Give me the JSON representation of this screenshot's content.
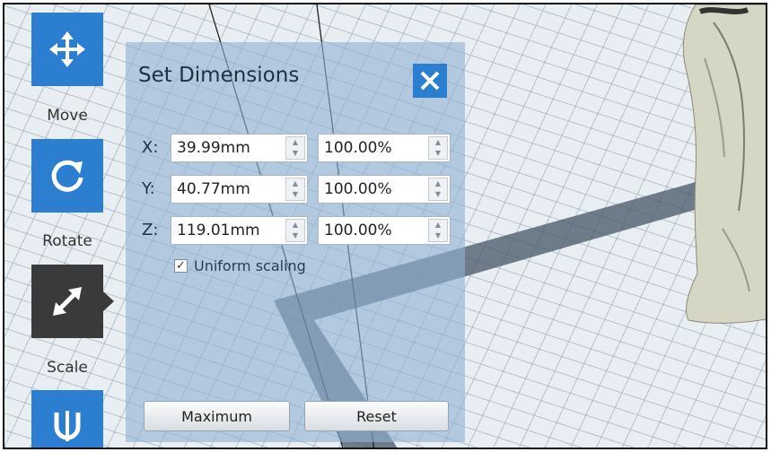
{
  "toolbar": {
    "tools": [
      {
        "name": "move",
        "label": "Move",
        "icon": "move-arrows-icon",
        "active": false
      },
      {
        "name": "rotate",
        "label": "Rotate",
        "icon": "rotate-icon",
        "active": false
      },
      {
        "name": "scale",
        "label": "Scale",
        "icon": "scale-diagonal-arrow-icon",
        "active": true
      },
      {
        "name": "cut",
        "label": "",
        "icon": "cut-icon",
        "active": false
      }
    ]
  },
  "dialog": {
    "title": "Set Dimensions",
    "close_icon": "close-icon",
    "rows": [
      {
        "axis": "X:",
        "size": "39.99mm",
        "percent": "100.00%"
      },
      {
        "axis": "Y:",
        "size": "40.77mm",
        "percent": "100.00%"
      },
      {
        "axis": "Z:",
        "size": "119.01mm",
        "percent": "100.00%"
      }
    ],
    "uniform_scaling": {
      "label": "Uniform scaling",
      "checked": true
    },
    "buttons": {
      "maximum": "Maximum",
      "reset": "Reset"
    }
  },
  "colors": {
    "accent_blue": "#2c7ed1",
    "active_tool": "#3a3a3a",
    "panel": "#8fb2d4",
    "grid_bg": "#e9eef2"
  }
}
